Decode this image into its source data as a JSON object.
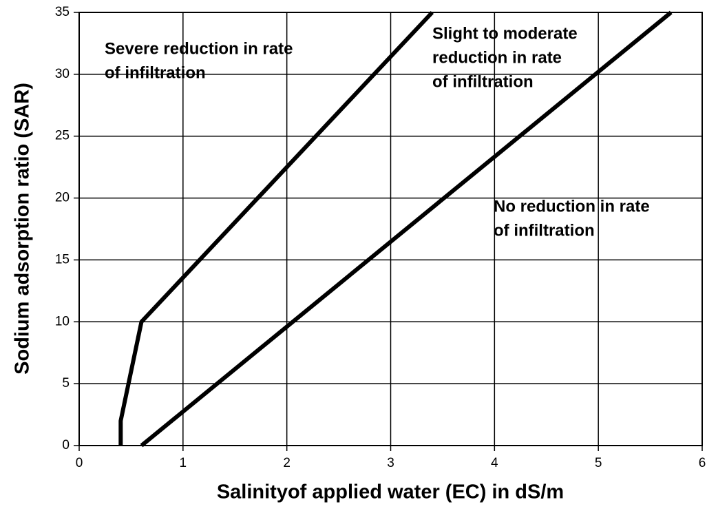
{
  "chart_data": {
    "type": "line",
    "x_label": "Salinityof applied water (EC) in dS/m",
    "y_label": "Sodium adsorption ratio (SAR)",
    "series": [
      {
        "color": "#000000",
        "x": [
          0.4,
          0.4,
          0.6,
          3.4
        ],
        "values": [
          0,
          2,
          10,
          35
        ]
      },
      {
        "color": "#000000",
        "x": [
          0.6,
          5.7
        ],
        "values": [
          0,
          35
        ]
      }
    ],
    "annotations": [
      [
        "Severe reduction in rate",
        "of infiltration"
      ],
      [
        "Slight to moderate",
        "reduction in rate",
        "of infiltration"
      ],
      [
        "No reduction in rate",
        "of infiltration"
      ]
    ],
    "xlim": [
      0,
      6
    ],
    "xticks": [
      0,
      1,
      2,
      3,
      4,
      5,
      6
    ],
    "ylim": [
      0,
      35
    ],
    "yticks": [
      0,
      5,
      10,
      15,
      20,
      25,
      30,
      35
    ],
    "grid": true
  }
}
